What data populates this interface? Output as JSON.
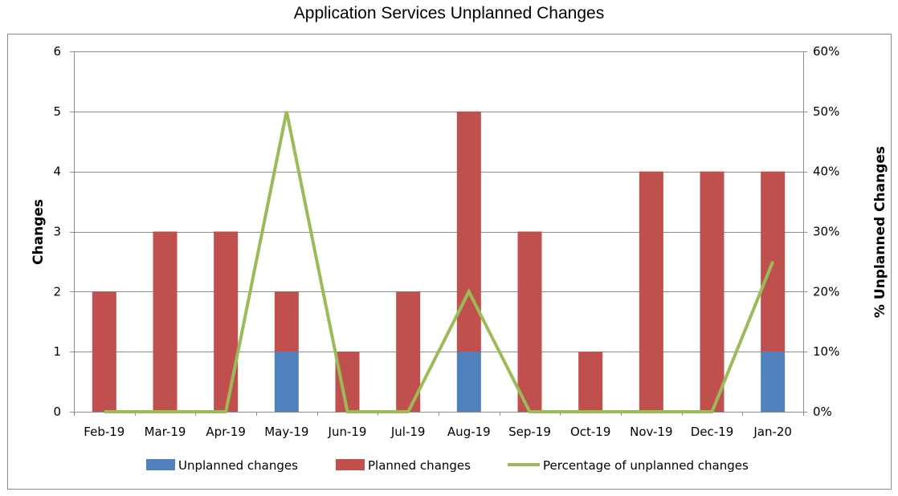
{
  "chart_data": {
    "type": "bar",
    "stacked": true,
    "title": "Application Services Unplanned Changes",
    "categories": [
      "Feb-19",
      "Mar-19",
      "Apr-19",
      "May-19",
      "Jun-19",
      "Jul-19",
      "Aug-19",
      "Sep-19",
      "Oct-19",
      "Nov-19",
      "Dec-19",
      "Jan-20"
    ],
    "series": [
      {
        "name": "Unplanned changes",
        "type": "bar",
        "axis": "left",
        "color": "#4f81bd",
        "values": [
          0,
          0,
          0,
          1,
          0,
          0,
          1,
          0,
          0,
          0,
          0,
          1
        ]
      },
      {
        "name": "Planned changes",
        "type": "bar",
        "axis": "left",
        "color": "#c0504d",
        "values": [
          2,
          3,
          3,
          1,
          1,
          2,
          4,
          3,
          1,
          4,
          4,
          3
        ]
      },
      {
        "name": "Percentage of unplanned changes",
        "type": "line",
        "axis": "right",
        "color": "#9bbb59",
        "values": [
          0,
          0,
          0,
          50,
          0,
          0,
          20,
          0,
          0,
          0,
          0,
          25
        ]
      }
    ],
    "ylabel": "Changes",
    "ylim": [
      0,
      6
    ],
    "yticks": [
      "0",
      "1",
      "2",
      "3",
      "4",
      "5",
      "6"
    ],
    "y2label": "% Unplanned Changes",
    "y2lim": [
      0,
      60
    ],
    "y2ticks": [
      "0%",
      "10%",
      "20%",
      "30%",
      "40%",
      "50%",
      "60%"
    ],
    "grid": true,
    "legend": "bottom"
  }
}
